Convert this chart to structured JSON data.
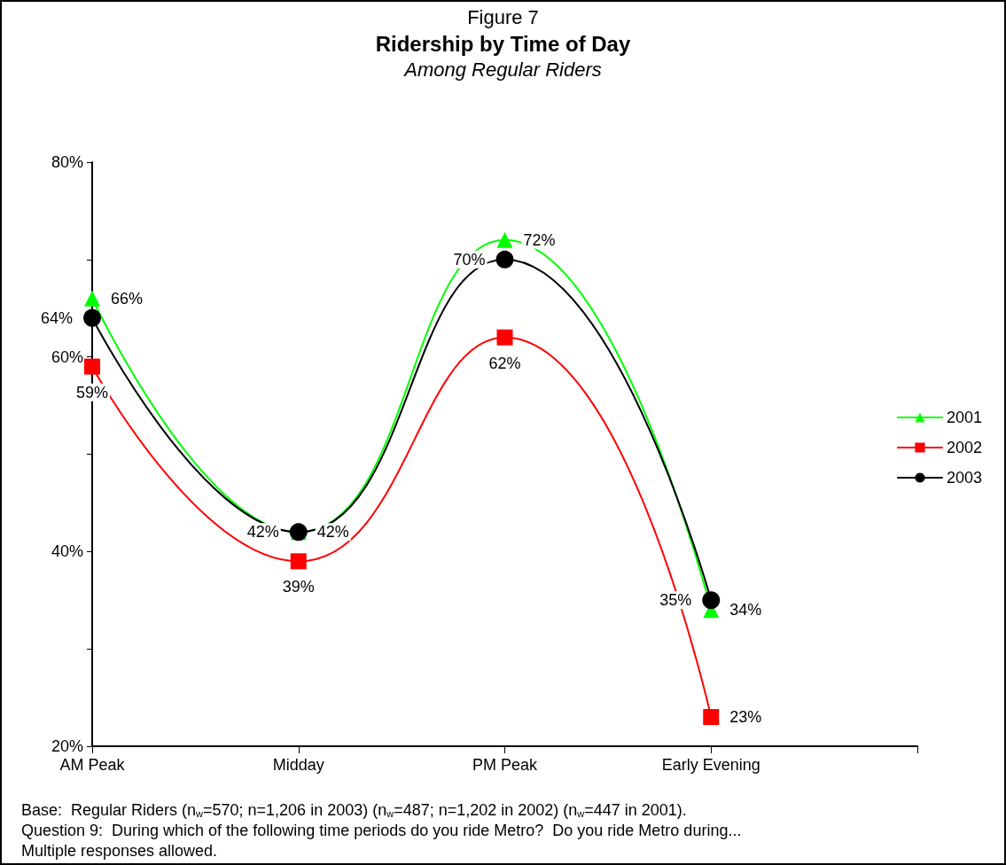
{
  "chart_data": {
    "type": "line",
    "title": "Ridership by Time of Day",
    "subtitle": "Among Regular Riders",
    "categories": [
      "AM Peak",
      "Midday",
      "PM Peak",
      "Early Evening",
      null
    ],
    "series": [
      {
        "name": "2001",
        "color": "#00ff00",
        "marker": "triangle",
        "values": [
          66,
          42,
          72,
          34,
          null
        ],
        "value_labels": [
          "66%",
          "42%",
          "72%",
          "34%",
          null
        ]
      },
      {
        "name": "2002",
        "color": "#ff0000",
        "marker": "square",
        "values": [
          59,
          39,
          62,
          23,
          null
        ],
        "value_labels": [
          "59%",
          "39%",
          "62%",
          "23%",
          null
        ]
      },
      {
        "name": "2003",
        "color": "#000000",
        "marker": "circle",
        "values": [
          64,
          42,
          70,
          35,
          null
        ],
        "value_labels": [
          "64%",
          "42%",
          "70%",
          "35%",
          null
        ]
      }
    ],
    "ylim": [
      20,
      80
    ],
    "yticks": [
      {
        "value": 20,
        "label": "20%"
      },
      {
        "value": 30,
        "label": null
      },
      {
        "value": 40,
        "label": "40%"
      },
      {
        "value": 50,
        "label": null
      },
      {
        "value": 60,
        "label": "60%"
      },
      {
        "value": 70,
        "label": null
      },
      {
        "value": 80,
        "label": "80%"
      }
    ],
    "grid": false,
    "legend": "right",
    "line_style": "solid",
    "annotations": [
      "Figure 7",
      "Base:  Regular Riders (n$_{w}$=570; n=1,206 in 2003) (n$_{w}$=487; n=1,202 in 2002) (n$_{w}$=447 in 2001).",
      "Question 9:  During which of the following time periods do you ride Metro?  Do you ride Metro during...",
      "Multiple responses allowed."
    ]
  }
}
